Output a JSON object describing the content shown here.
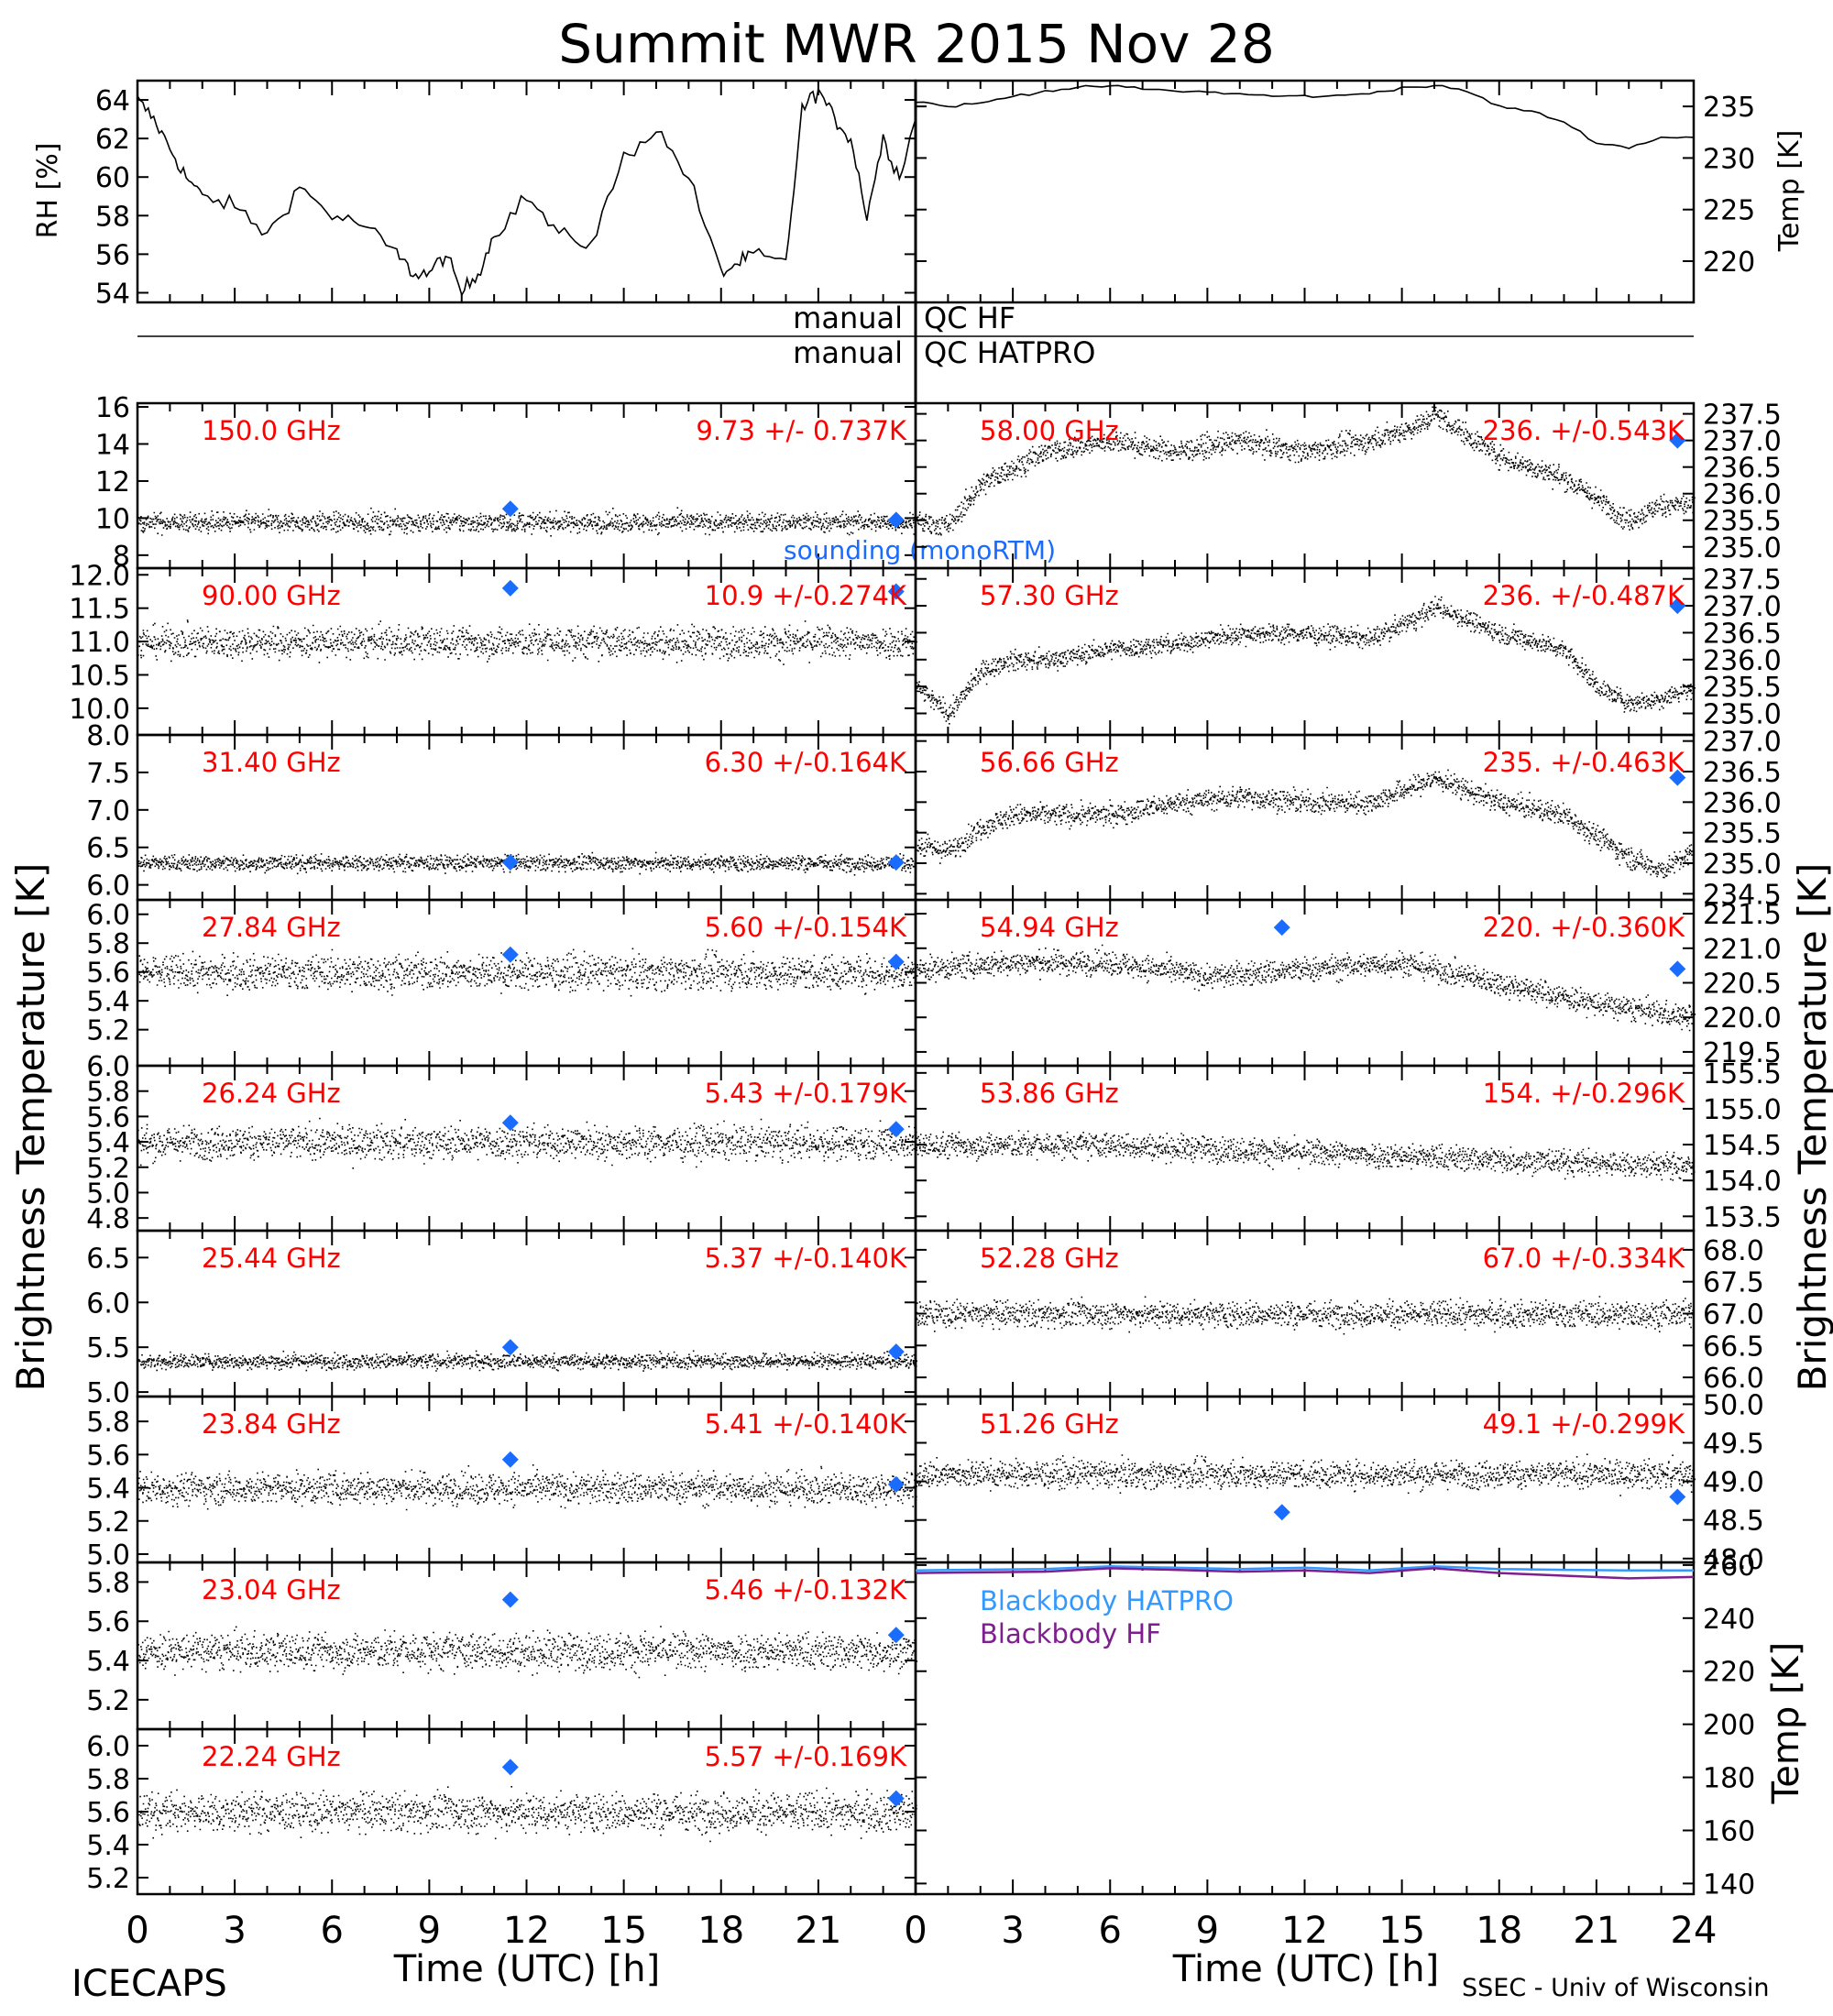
{
  "title": "Summit MWR 2015 Nov 28",
  "footer": {
    "left": "ICECAPS",
    "right": "SSEC - Univ of Wisconsin"
  },
  "side_labels": {
    "left": "Brightness Temperature [K]",
    "right": "Brightness Temperature [K]"
  },
  "x_axis": {
    "label": "Time (UTC) [h]",
    "ticks": [
      "0",
      "3",
      "6",
      "9",
      "12",
      "15",
      "18",
      "21",
      "24"
    ]
  },
  "qc": {
    "row1_left": "manual",
    "row1_right": "QC HF",
    "row2_left": "manual",
    "row2_right": "QC HATPRO"
  },
  "colors": {
    "data": "#000000",
    "label": "#ff0000",
    "sounding": "#1a6cff",
    "bb_hatpro": "#3399ff",
    "bb_hf": "#7f1f8f"
  },
  "chart_data": [
    {
      "id": "rh",
      "type": "line",
      "ylabel": "RH [%]",
      "ylim": [
        53.5,
        65
      ],
      "yticks": [
        54,
        56,
        58,
        60,
        62,
        64
      ],
      "x": [
        0,
        0.5,
        1,
        1.5,
        2,
        3,
        4,
        5,
        6,
        7,
        8,
        8.5,
        9,
        9.5,
        10,
        10.5,
        11,
        12,
        13,
        14,
        15,
        16,
        17,
        18,
        18.5,
        19,
        20,
        20.5,
        21,
        21.5,
        22,
        22.5,
        23,
        23.5,
        24
      ],
      "y": [
        64,
        63,
        61.5,
        60,
        59,
        58.5,
        57,
        59.5,
        58,
        57.5,
        56,
        55,
        55,
        56,
        54,
        55,
        57,
        59,
        57,
        56.5,
        61,
        62.5,
        60,
        55,
        55.5,
        56,
        55.5,
        63.5,
        64.5,
        63,
        62,
        58,
        62,
        60,
        63
      ]
    },
    {
      "id": "temp",
      "type": "line",
      "ylabel": "Temp [K]",
      "ylim": [
        216,
        237.5
      ],
      "yticks": [
        220,
        225,
        230,
        235
      ],
      "side": "right",
      "x": [
        0,
        1,
        2,
        3,
        4,
        5,
        6,
        7,
        8,
        9,
        10,
        11,
        12,
        13,
        14,
        15,
        16,
        17,
        18,
        19,
        20,
        21,
        22,
        23,
        24
      ],
      "y": [
        235.5,
        235,
        235.3,
        236,
        236.5,
        236.8,
        237,
        236.7,
        236.5,
        236.4,
        236.2,
        236,
        236,
        236,
        236.3,
        236.8,
        237,
        236.5,
        235,
        234.5,
        233.5,
        231.5,
        231,
        232,
        232
      ]
    },
    {
      "id": "f150",
      "freq": "150.0 GHz",
      "stat": "9.73 +/- 0.737K",
      "ylim": [
        7.3,
        16.2
      ],
      "yticks": [
        "8",
        "10",
        "12",
        "14",
        "16"
      ],
      "yticks_v": [
        8,
        10,
        12,
        14,
        16
      ],
      "mean": 9.8,
      "noise": 0.9,
      "diamonds": [
        [
          11.5,
          10.5
        ],
        [
          23.4,
          9.9
        ]
      ],
      "sounding_label": "sounding (monoRTM)"
    },
    {
      "id": "f58",
      "freq": "58.00 GHz",
      "stat": "236. +/-0.543K",
      "ylim": [
        234.6,
        237.7
      ],
      "yticks": [
        "235.0",
        "235.5",
        "236.0",
        "236.5",
        "237.0",
        "237.5"
      ],
      "yticks_v": [
        235,
        235.5,
        236,
        236.5,
        237,
        237.5
      ],
      "trend_x": [
        0,
        1,
        2,
        3,
        4,
        5,
        6,
        8,
        10,
        12,
        14,
        15.5,
        16,
        18,
        20,
        22,
        23,
        24
      ],
      "trend_y": [
        235.5,
        235.4,
        236.2,
        236.5,
        236.8,
        236.9,
        237,
        236.8,
        237,
        236.8,
        237,
        237.3,
        237.5,
        236.7,
        236.3,
        235.5,
        235.8,
        235.8
      ],
      "noise": 0.35,
      "diamonds": [
        [
          23.5,
          237.0
        ]
      ]
    },
    {
      "id": "f90",
      "freq": "90.00 GHz",
      "stat": "10.9 +/-0.274K",
      "ylim": [
        9.6,
        12.1
      ],
      "yticks": [
        "10.0",
        "10.5",
        "11.0",
        "11.5",
        "12.0"
      ],
      "yticks_v": [
        10,
        10.5,
        11,
        11.5,
        12
      ],
      "mean": 11.0,
      "noise": 0.4,
      "diamonds": [
        [
          11.5,
          11.8
        ],
        [
          23.4,
          11.75
        ]
      ]
    },
    {
      "id": "f5730",
      "freq": "57.30 GHz",
      "stat": "236. +/-0.487K",
      "ylim": [
        234.6,
        237.7
      ],
      "yticks": [
        "235.0",
        "235.5",
        "236.0",
        "236.5",
        "237.0",
        "237.5"
      ],
      "yticks_v": [
        235,
        235.5,
        236,
        236.5,
        237,
        237.5
      ],
      "trend_x": [
        0,
        1,
        2,
        3,
        4,
        6,
        8,
        10,
        12,
        14,
        15.5,
        16,
        18,
        20,
        21,
        22,
        23,
        24
      ],
      "trend_y": [
        235.5,
        235,
        235.8,
        236,
        236,
        236.2,
        236.3,
        236.5,
        236.5,
        236.4,
        236.8,
        237,
        236.5,
        236.2,
        235.5,
        235.2,
        235.3,
        235.5
      ],
      "noise": 0.3,
      "diamonds": [
        [
          23.5,
          237.0
        ]
      ]
    },
    {
      "id": "f314",
      "freq": "31.40 GHz",
      "stat": "6.30 +/-0.164K",
      "ylim": [
        5.8,
        8.0
      ],
      "yticks": [
        "6.0",
        "6.5",
        "7.0",
        "7.5",
        "8.0"
      ],
      "yticks_v": [
        6,
        6.5,
        7,
        7.5,
        8
      ],
      "mean": 6.3,
      "noise": 0.18,
      "diamonds": [
        [
          11.5,
          6.3
        ],
        [
          23.4,
          6.3
        ]
      ]
    },
    {
      "id": "f5666",
      "freq": "56.66 GHz",
      "stat": "235. +/-0.463K",
      "ylim": [
        234.4,
        237.1
      ],
      "yticks": [
        "234.5",
        "235.0",
        "235.5",
        "236.0",
        "236.5",
        "237.0"
      ],
      "yticks_v": [
        234.5,
        235,
        235.5,
        236,
        236.5,
        237
      ],
      "trend_x": [
        0,
        1,
        2,
        3,
        4,
        6,
        8,
        10,
        12,
        14,
        15.5,
        16,
        18,
        20,
        22,
        23,
        24
      ],
      "trend_y": [
        235.3,
        235.2,
        235.6,
        235.8,
        235.8,
        235.8,
        236,
        236.1,
        236,
        236,
        236.3,
        236.4,
        236,
        235.8,
        235.1,
        234.9,
        235.2
      ],
      "noise": 0.3,
      "diamonds": [
        [
          23.5,
          236.4
        ]
      ]
    },
    {
      "id": "f2784",
      "freq": "27.84 GHz",
      "stat": "5.60 +/-0.154K",
      "ylim": [
        4.95,
        6.1
      ],
      "yticks": [
        "5.2",
        "5.4",
        "5.6",
        "5.8",
        "6.0"
      ],
      "yticks_v": [
        5.2,
        5.4,
        5.6,
        5.8,
        6.0
      ],
      "mean": 5.6,
      "noise": 0.2,
      "diamonds": [
        [
          11.5,
          5.72
        ],
        [
          23.4,
          5.67
        ]
      ]
    },
    {
      "id": "f5494",
      "freq": "54.94 GHz",
      "stat": "220. +/-0.360K",
      "ylim": [
        219.3,
        221.7
      ],
      "yticks": [
        "219.5",
        "220.0",
        "220.5",
        "221.0",
        "221.5"
      ],
      "yticks_v": [
        219.5,
        220,
        220.5,
        221,
        221.5
      ],
      "trend_x": [
        0,
        3,
        6,
        9,
        12,
        15,
        18,
        21,
        24
      ],
      "trend_y": [
        220.7,
        220.8,
        220.8,
        220.6,
        220.7,
        220.8,
        220.5,
        220.2,
        220.0
      ],
      "noise": 0.3,
      "diamonds": [
        [
          11.3,
          221.3
        ],
        [
          23.5,
          220.7
        ]
      ]
    },
    {
      "id": "f2624",
      "freq": "26.24 GHz",
      "stat": "5.43 +/-0.179K",
      "ylim": [
        4.7,
        6.0
      ],
      "yticks": [
        "4.8",
        "5.0",
        "5.2",
        "5.4",
        "5.6",
        "5.8",
        "6.0"
      ],
      "yticks_v": [
        4.8,
        5.0,
        5.2,
        5.4,
        5.6,
        5.8,
        6.0
      ],
      "mean": 5.4,
      "noise": 0.22,
      "diamonds": [
        [
          11.5,
          5.55
        ],
        [
          23.4,
          5.5
        ]
      ]
    },
    {
      "id": "f5386",
      "freq": "53.86 GHz",
      "stat": "154. +/-0.296K",
      "ylim": [
        153.3,
        155.6
      ],
      "yticks": [
        "153.5",
        "154.0",
        "154.5",
        "155.0",
        "155.5"
      ],
      "yticks_v": [
        153.5,
        154,
        154.5,
        155,
        155.5
      ],
      "trend_x": [
        0,
        6,
        12,
        18,
        24
      ],
      "trend_y": [
        154.5,
        154.5,
        154.4,
        154.3,
        154.2
      ],
      "noise": 0.3,
      "diamonds": []
    },
    {
      "id": "f2544",
      "freq": "25.44 GHz",
      "stat": "5.37 +/-0.140K",
      "ylim": [
        4.95,
        6.8
      ],
      "yticks": [
        "5.0",
        "5.5",
        "6.0",
        "6.5"
      ],
      "yticks_v": [
        5.0,
        5.5,
        6.0,
        6.5
      ],
      "mean": 5.35,
      "noise": 0.14,
      "diamonds": [
        [
          11.5,
          5.5
        ],
        [
          23.4,
          5.45
        ]
      ]
    },
    {
      "id": "f5228",
      "freq": "52.28 GHz",
      "stat": "67.0 +/-0.334K",
      "ylim": [
        65.7,
        68.3
      ],
      "yticks": [
        "66.0",
        "66.5",
        "67.0",
        "67.5",
        "68.0"
      ],
      "yticks_v": [
        66,
        66.5,
        67,
        67.5,
        68
      ],
      "trend_x": [
        0,
        24
      ],
      "trend_y": [
        67.0,
        67.0
      ],
      "noise": 0.35,
      "diamonds": []
    },
    {
      "id": "f2384",
      "freq": "23.84 GHz",
      "stat": "5.41 +/-0.140K",
      "ylim": [
        4.95,
        5.95
      ],
      "yticks": [
        "5.0",
        "5.2",
        "5.4",
        "5.6",
        "5.8"
      ],
      "yticks_v": [
        5.0,
        5.2,
        5.4,
        5.6,
        5.8
      ],
      "mean": 5.4,
      "noise": 0.16,
      "diamonds": [
        [
          11.5,
          5.57
        ],
        [
          23.4,
          5.42
        ]
      ]
    },
    {
      "id": "f5126",
      "freq": "51.26 GHz",
      "stat": "49.1 +/-0.299K",
      "ylim": [
        47.95,
        50.1
      ],
      "yticks": [
        "48.0",
        "48.5",
        "49.0",
        "49.5",
        "50.0"
      ],
      "yticks_v": [
        48,
        48.5,
        49,
        49.5,
        50
      ],
      "trend_x": [
        0,
        24
      ],
      "trend_y": [
        49.1,
        49.1
      ],
      "noise": 0.3,
      "diamonds": [
        [
          11.3,
          48.6
        ],
        [
          23.5,
          48.8
        ]
      ]
    },
    {
      "id": "f2304",
      "freq": "23.04 GHz",
      "stat": "5.46 +/-0.132K",
      "ylim": [
        5.05,
        5.9
      ],
      "yticks": [
        "5.2",
        "5.4",
        "5.6",
        "5.8"
      ],
      "yticks_v": [
        5.2,
        5.4,
        5.6,
        5.8
      ],
      "mean": 5.45,
      "noise": 0.16,
      "diamonds": [
        [
          11.5,
          5.71
        ],
        [
          23.4,
          5.53
        ]
      ]
    },
    {
      "id": "bb",
      "type": "line",
      "ylabel": "Temp [K]",
      "ylim": [
        136,
        261
      ],
      "yticks": [
        "140",
        "160",
        "180",
        "200",
        "220",
        "240",
        "260"
      ],
      "yticks_v": [
        140,
        160,
        180,
        200,
        220,
        240,
        260
      ],
      "side": "right",
      "series": [
        {
          "name": "Blackbody HATPRO",
          "x": [
            0,
            4,
            6,
            8,
            10,
            12,
            14,
            16,
            18,
            20,
            22,
            24
          ],
          "y": [
            258,
            258.5,
            259.5,
            259,
            258.5,
            259,
            258,
            259.5,
            258.5,
            258.2,
            258,
            258
          ]
        },
        {
          "name": "Blackbody HF",
          "x": [
            0,
            4,
            6,
            8,
            10,
            12,
            14,
            16,
            18,
            20,
            22,
            24
          ],
          "y": [
            257,
            257.5,
            258.8,
            258.2,
            257.5,
            258,
            257,
            258.8,
            257,
            256,
            255,
            255.5
          ]
        }
      ]
    },
    {
      "id": "f2224",
      "freq": "22.24 GHz",
      "stat": "5.57 +/-0.169K",
      "ylim": [
        5.1,
        6.1
      ],
      "yticks": [
        "5.2",
        "5.4",
        "5.6",
        "5.8",
        "6.0"
      ],
      "yticks_v": [
        5.2,
        5.4,
        5.6,
        5.8,
        6.0
      ],
      "mean": 5.6,
      "noise": 0.2,
      "diamonds": [
        [
          11.5,
          5.87
        ],
        [
          23.4,
          5.68
        ]
      ]
    }
  ]
}
